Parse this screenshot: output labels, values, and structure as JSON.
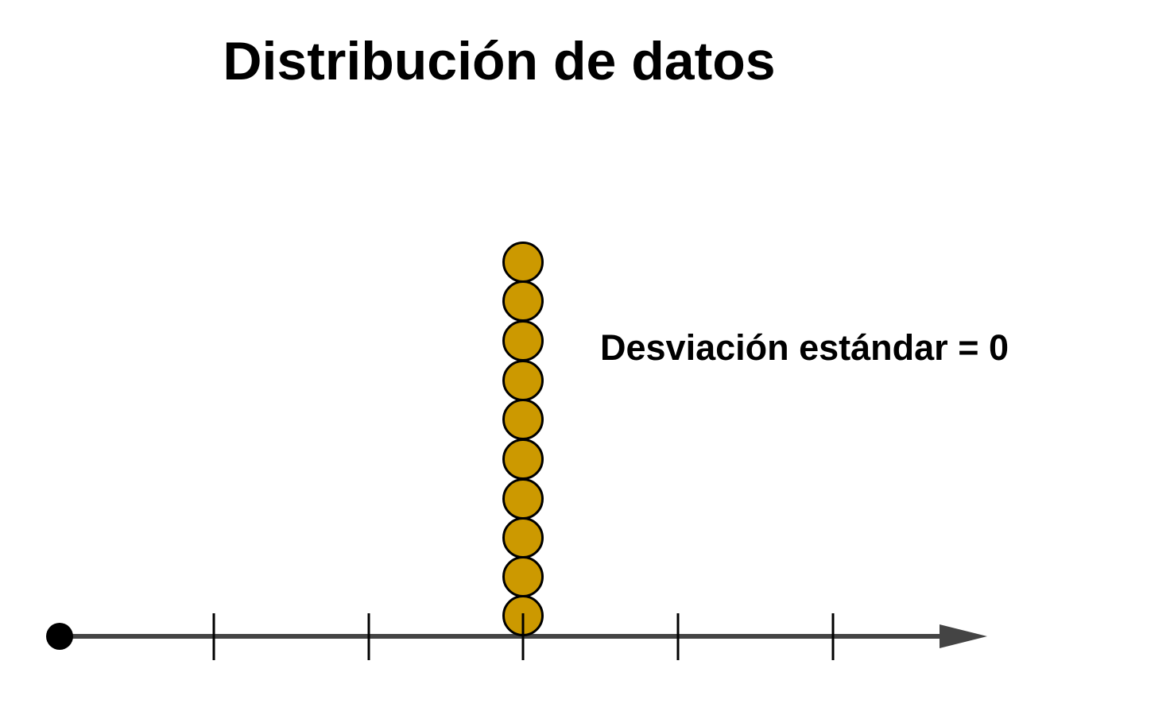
{
  "title": "Distribución de datos",
  "annotation": "Desviación estándar = 0"
}
